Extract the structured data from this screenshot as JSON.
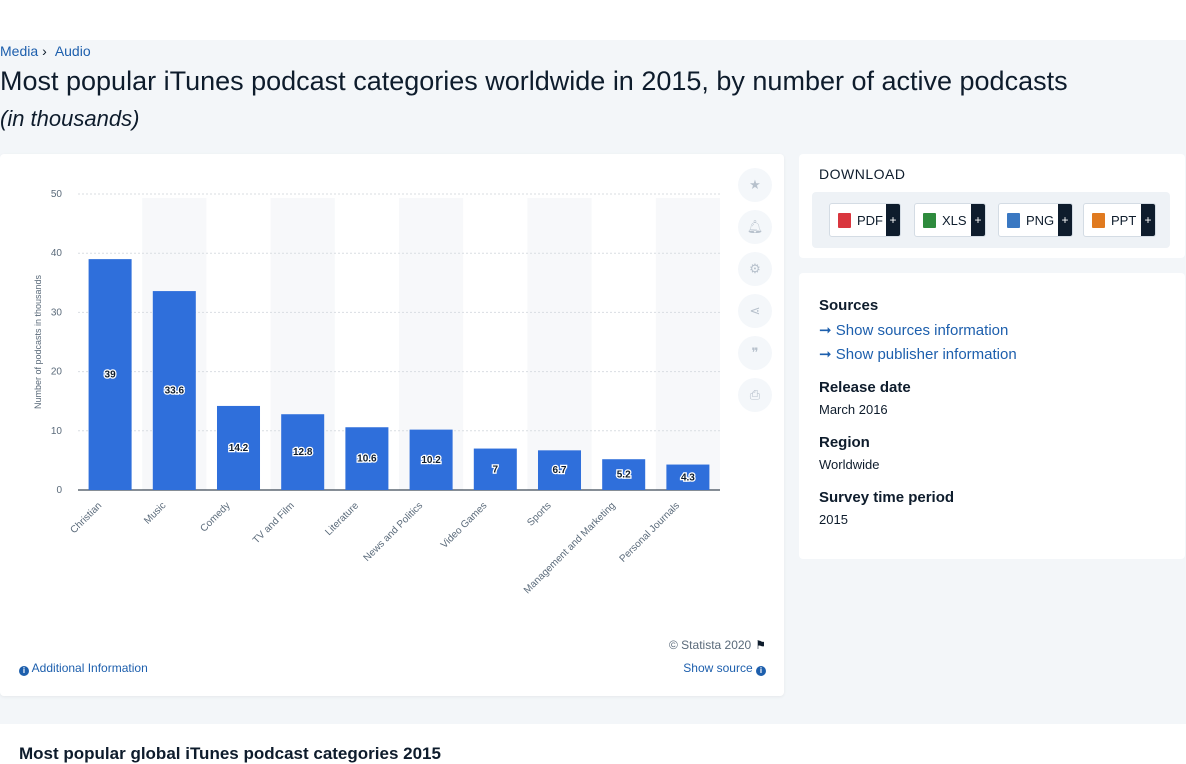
{
  "breadcrumb": [
    "Media",
    "Audio"
  ],
  "title": "Most popular iTunes podcast categories worldwide in 2015, by number of active podcasts",
  "subtitle": "(in thousands)",
  "chart_data": {
    "type": "bar",
    "categories": [
      "Christian",
      "Music",
      "Comedy",
      "TV and Film",
      "Literature",
      "News and Politics",
      "Video Games",
      "Sports",
      "Management and Marketing",
      "Personal Journals"
    ],
    "values": [
      39,
      33.6,
      14.2,
      12.8,
      10.6,
      10.2,
      7,
      6.7,
      5.2,
      4.3
    ],
    "ylabel": "Number of podcasts in thousands",
    "ylim": [
      0,
      50
    ],
    "yticks": [
      0,
      10,
      20,
      30,
      40,
      50
    ],
    "bar_color": "#2f6fdb",
    "grid": true
  },
  "chart_footer": {
    "copyright": "© Statista 2020",
    "additional_info": "Additional Information",
    "show_source": "Show source"
  },
  "download": {
    "title": "DOWNLOAD",
    "buttons": [
      {
        "label": "PDF",
        "icon": "pdf-file-icon",
        "color": "#d9363e"
      },
      {
        "label": "XLS",
        "icon": "xls-file-icon",
        "color": "#2e8b3d"
      },
      {
        "label": "PNG",
        "icon": "png-file-icon",
        "color": "#3a78c2"
      },
      {
        "label": "PPT",
        "icon": "ppt-file-icon",
        "color": "#e07a1f"
      }
    ]
  },
  "meta": {
    "sources_label": "Sources",
    "show_sources": "Show sources information",
    "show_publisher": "Show publisher information",
    "release_date_label": "Release date",
    "release_date": "March 2016",
    "region_label": "Region",
    "region": "Worldwide",
    "survey_label": "Survey time period",
    "survey": "2015"
  },
  "related_title": "Most popular global iTunes podcast categories 2015"
}
